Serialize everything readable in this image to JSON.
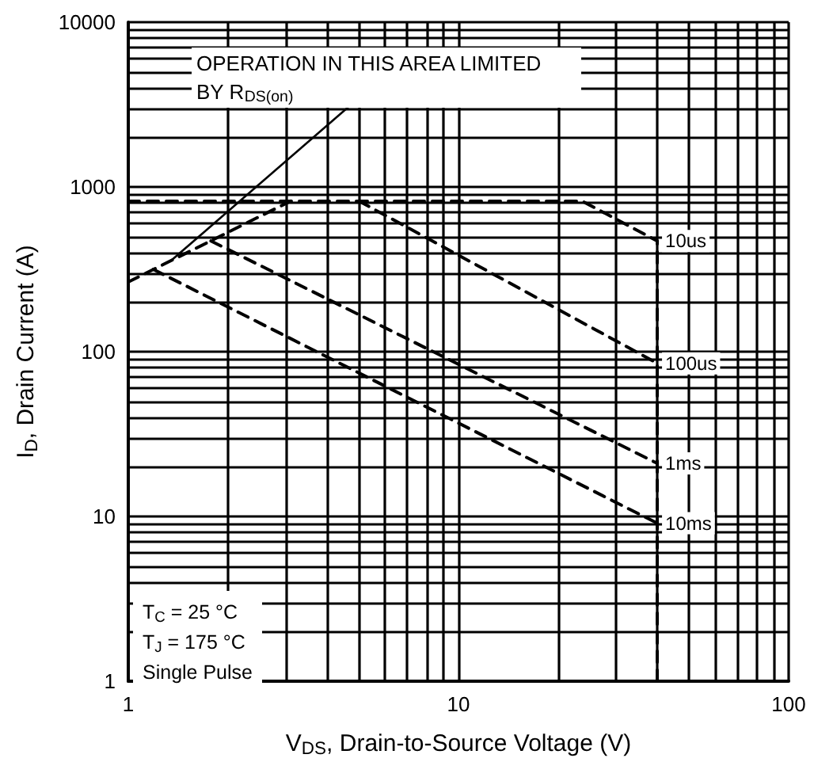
{
  "chart_data": {
    "type": "line",
    "xlabel": "V$_{DS}$, Drain-to-Source Voltage (V)",
    "ylabel": "I$_{D}$, Drain Current (A)",
    "annotations": [
      {
        "text": "OPERATION IN THIS AREA LIMITED BY R$_{DS(on)}$",
        "x": 1.35,
        "y": 358
      },
      "T$_{C}$ = 25 °C",
      "T$_{J}$ = 175 °C",
      "Single Pulse"
    ],
    "series": [
      {
        "color": "#000000",
        "x": [
          1,
          3.1
        ],
        "values": [
          265,
          820
        ]
      },
      {
        "name": "10us",
        "color": "#000000",
        "x": [
          1,
          23.7,
          40
        ],
        "values": [
          820,
          820,
          470
        ]
      },
      {
        "name": "100us",
        "color": "#000000",
        "x": [
          5,
          40
        ],
        "values": [
          820,
          85
        ]
      },
      {
        "name": "1ms",
        "color": "#000000",
        "x": [
          1.78,
          40
        ],
        "values": [
          470,
          21
        ]
      },
      {
        "name": "10ms",
        "color": "#000000",
        "x": [
          1.19,
          40
        ],
        "values": [
          316,
          9.1
        ]
      },
      {
        "color": "#000000",
        "x": [
          40,
          40
        ],
        "values": [
          1,
          470
        ]
      }
    ],
    "log": "xy",
    "xlim": [
      1,
      100
    ],
    "ylim": [
      1,
      10000
    ],
    "xticks": [
      1,
      10,
      100
    ],
    "yticks": [
      1,
      10,
      100,
      1000,
      10000
    ],
    "grid": true,
    "legend": false,
    "marker": "none",
    "line_style": "dashed"
  }
}
